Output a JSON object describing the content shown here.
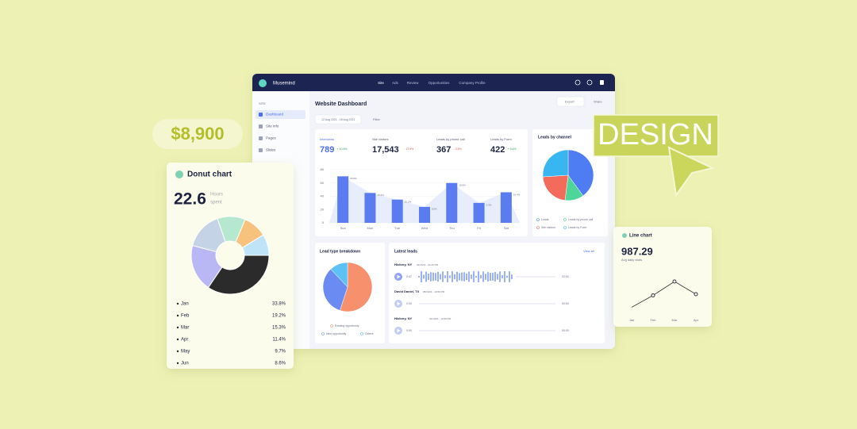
{
  "price_badge": "$8,900",
  "design_badge": "DESIGN",
  "donut_card": {
    "title": "Donut chart",
    "value": "22.6",
    "unit_line1": "Hours",
    "unit_line2": "spent",
    "slices": [
      {
        "label": "Jan",
        "value": 33.8,
        "value_label": "33.8%",
        "color": "#2b2b2b"
      },
      {
        "label": "Feb",
        "value": 19.2,
        "value_label": "19.2%",
        "color": "#b9b8f5"
      },
      {
        "label": "Mar",
        "value": 15.3,
        "value_label": "15.3%",
        "color": "#c5d3e6"
      },
      {
        "label": "Apr",
        "value": 11.4,
        "value_label": "11.4%",
        "color": "#b6e8cf"
      },
      {
        "label": "May",
        "value": 9.7,
        "value_label": "9.7%",
        "color": "#f7c27d"
      },
      {
        "label": "Jun",
        "value": 8.6,
        "value_label": "8.6%",
        "color": "#bfe4f8"
      }
    ]
  },
  "dashboard": {
    "app_name": "Musemind",
    "nav": [
      "Site",
      "Ads",
      "Review",
      "Opportunities",
      "Company Profile"
    ],
    "sidebar_heading": "SITE",
    "sidebar": [
      "Dashboard",
      "Site info",
      "Pages",
      "Slides"
    ],
    "title": "Website Dashboard",
    "date_range": "12 Aug 2021 - 18 Aug 2021",
    "filter": "Filter",
    "export": "Export",
    "share": "Share",
    "stats": [
      {
        "label": "Interviews",
        "value": "789",
        "change": "+ 10.5%",
        "color": "#2f9a5c"
      },
      {
        "label": "Site visitors",
        "value": "17,543",
        "change": "- 17.5%",
        "color": "#e0524f"
      },
      {
        "label": "Leads by phone call",
        "value": "367",
        "change": "- 3.5%",
        "color": "#e0524f"
      },
      {
        "label": "Leads by Form",
        "value": "422",
        "change": "+ 5.6%",
        "color": "#2f9a5c"
      }
    ],
    "bar_chart": {
      "categories": [
        "Sun",
        "Mon",
        "Tue",
        "Wed",
        "Thu",
        "Fri",
        "Sat"
      ],
      "values": [
        70,
        45,
        35,
        24,
        60,
        30,
        46
      ],
      "bar_labels": [
        "20.6%",
        "15.6%",
        "10.2%",
        "8.6%",
        "18.5%",
        "9.3%",
        "16.4%"
      ],
      "ylim": [
        0,
        80
      ],
      "yticks": [
        0,
        20,
        40,
        60,
        80
      ],
      "color": "#5b7cf0"
    },
    "channel_pie": {
      "title": "Leads by channel",
      "slices": [
        {
          "label": "Leads",
          "value": 40,
          "color": "#4d7cf3"
        },
        {
          "label": "Leads by phone call",
          "value": 12,
          "color": "#4fd59a"
        },
        {
          "label": "Site visitors",
          "value": 22,
          "color": "#f26b5b"
        },
        {
          "label": "Leads by Form",
          "value": 26,
          "color": "#38b6f2"
        }
      ]
    },
    "lead_pie": {
      "title": "Lead type breakdown",
      "slices": [
        {
          "label": "Existing opportunity",
          "value": 55,
          "color": "#f7906d"
        },
        {
          "label": "New opportunity",
          "value": 33,
          "color": "#6a8cf2"
        },
        {
          "label": "Others",
          "value": 12,
          "color": "#5cc2f5"
        }
      ]
    },
    "latest_leads": {
      "title": "Latest leads",
      "view_all": "View all",
      "rows": [
        {
          "name": "Hickory, NY",
          "time": "01/16/21 - 01:22 PM",
          "start": "0:47",
          "end": "02:00"
        },
        {
          "name": "David Daniel, TX",
          "time": "08/16/21 - 10:59 PM",
          "start": "0:00",
          "end": "00:00"
        },
        {
          "name": "Hickory, NY",
          "time": "01/10/21 - 12:58 PM",
          "start": "0:00",
          "end": "00:00"
        }
      ]
    }
  },
  "line_card": {
    "title": "Line chart",
    "value": "987.29",
    "subtitle": "Avg daily visits",
    "categories": [
      "Jan",
      "Feb",
      "Mar",
      "Apr"
    ],
    "values": [
      15,
      45,
      80,
      48
    ],
    "ylim": [
      0,
      100
    ],
    "color": "#333333"
  }
}
